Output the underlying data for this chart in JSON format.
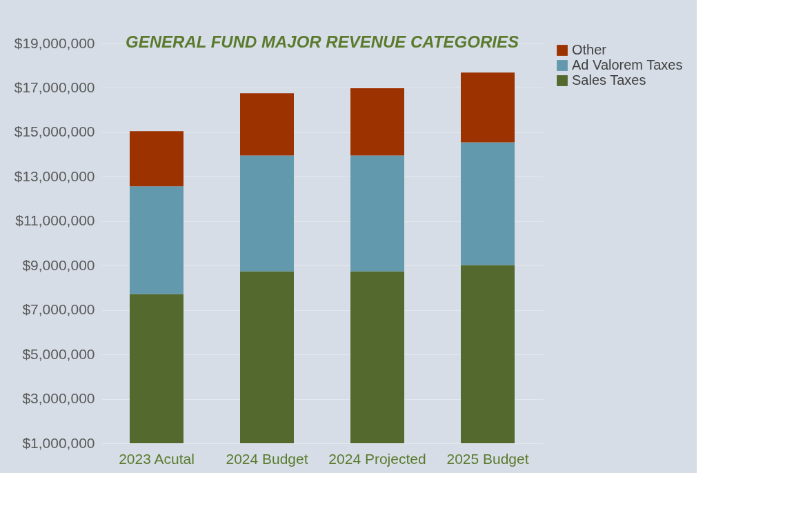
{
  "chart_data": {
    "type": "bar",
    "title": "GENERAL FUND MAJOR REVENUE CATEGORIES",
    "stacked": true,
    "categories": [
      "2023 Acutal",
      "2024 Budget",
      "2024 Projected",
      "2025 Budget"
    ],
    "series": [
      {
        "name": "Sales Taxes",
        "color": "#53692e",
        "values": [
          7720000,
          8740000,
          8740000,
          9020000
        ]
      },
      {
        "name": "Ad Valorem Taxes",
        "color": "#6399ad",
        "values": [
          4850000,
          5220000,
          5220000,
          5530000
        ]
      },
      {
        "name": "Other",
        "color": "#9c3200",
        "values": [
          2480000,
          2800000,
          3020000,
          3140000
        ]
      }
    ],
    "ylim": [
      1000000,
      19000000
    ],
    "yticks": [
      {
        "value": 1000000,
        "label": "$1,000,000"
      },
      {
        "value": 3000000,
        "label": "$3,000,000"
      },
      {
        "value": 5000000,
        "label": "$5,000,000"
      },
      {
        "value": 7000000,
        "label": "$7,000,000"
      },
      {
        "value": 9000000,
        "label": "$9,000,000"
      },
      {
        "value": 11000000,
        "label": "$11,000,000"
      },
      {
        "value": 13000000,
        "label": "$13,000,000"
      },
      {
        "value": 15000000,
        "label": "$15,000,000"
      },
      {
        "value": 17000000,
        "label": "$17,000,000"
      },
      {
        "value": 19000000,
        "label": "$19,000,000"
      }
    ],
    "grid": "y",
    "legend": "right"
  }
}
